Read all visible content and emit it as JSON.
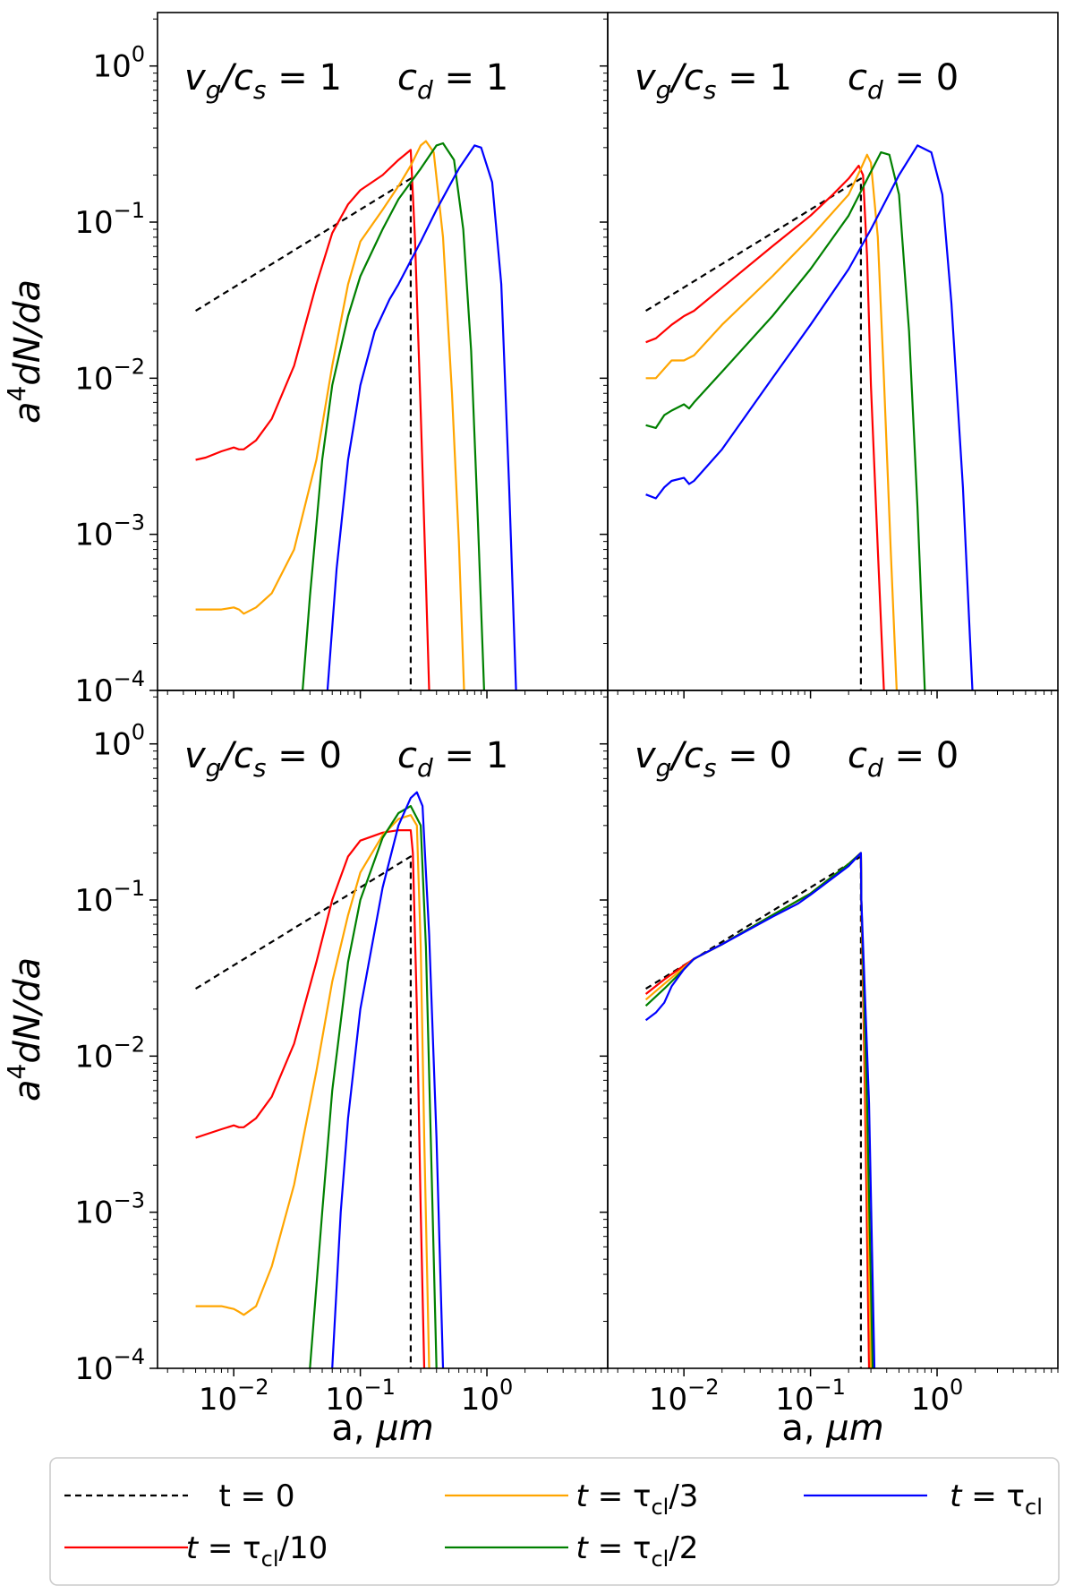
{
  "chart_data": [
    {
      "type": "line",
      "title": "",
      "annotations": [
        "v_g/c_s = 1",
        "c_d = 1"
      ],
      "xscale": "log",
      "yscale": "log",
      "xlim": [
        0.0025,
        9.0
      ],
      "ylim": [
        0.0001,
        2.2
      ],
      "xlabel": "",
      "ylabel": "a^4dN/da",
      "series": [
        {
          "name": "t = 0",
          "color": "#000000",
          "dash": true,
          "x": [
            0.005,
            0.25,
            0.25
          ],
          "y": [
            0.027,
            0.19,
            0.0001
          ]
        },
        {
          "name": "t = τcl/10",
          "color": "#ff0000",
          "x": [
            0.005,
            0.006,
            0.008,
            0.01,
            0.011,
            0.012,
            0.015,
            0.02,
            0.03,
            0.045,
            0.06,
            0.08,
            0.1,
            0.15,
            0.2,
            0.25,
            0.27,
            0.3,
            0.33,
            0.35
          ],
          "y": [
            0.003,
            0.0031,
            0.0034,
            0.0036,
            0.0035,
            0.0035,
            0.004,
            0.0055,
            0.012,
            0.04,
            0.085,
            0.13,
            0.16,
            0.2,
            0.25,
            0.29,
            0.08,
            0.006,
            0.0005,
            0.0001
          ]
        },
        {
          "name": "t = τcl/3",
          "color": "#ffa500",
          "x": [
            0.005,
            0.008,
            0.01,
            0.011,
            0.012,
            0.015,
            0.02,
            0.03,
            0.045,
            0.06,
            0.08,
            0.1,
            0.15,
            0.2,
            0.25,
            0.3,
            0.33,
            0.38,
            0.45,
            0.53,
            0.6,
            0.66
          ],
          "y": [
            0.00033,
            0.00033,
            0.00034,
            0.00033,
            0.00031,
            0.00034,
            0.00042,
            0.0008,
            0.003,
            0.012,
            0.04,
            0.075,
            0.12,
            0.17,
            0.23,
            0.31,
            0.33,
            0.28,
            0.08,
            0.008,
            0.0009,
            0.0001
          ]
        },
        {
          "name": "t = τcl/2",
          "color": "#008000",
          "x": [
            0.035,
            0.04,
            0.05,
            0.06,
            0.08,
            0.1,
            0.15,
            0.2,
            0.3,
            0.4,
            0.45,
            0.55,
            0.65,
            0.75,
            0.85,
            0.95
          ],
          "y": [
            0.0001,
            0.0004,
            0.003,
            0.009,
            0.025,
            0.045,
            0.09,
            0.14,
            0.22,
            0.31,
            0.32,
            0.25,
            0.09,
            0.015,
            0.0012,
            0.0001
          ]
        },
        {
          "name": "t = τcl",
          "color": "#0000ff",
          "x": [
            0.055,
            0.065,
            0.08,
            0.1,
            0.13,
            0.17,
            0.2,
            0.3,
            0.4,
            0.6,
            0.8,
            0.9,
            1.1,
            1.3,
            1.5,
            1.7
          ],
          "y": [
            0.0001,
            0.0006,
            0.003,
            0.009,
            0.02,
            0.032,
            0.04,
            0.075,
            0.12,
            0.22,
            0.31,
            0.3,
            0.18,
            0.04,
            0.002,
            0.0001
          ]
        }
      ]
    },
    {
      "type": "line",
      "title": "",
      "annotations": [
        "v_g/c_s = 1",
        "c_d = 0"
      ],
      "xscale": "log",
      "yscale": "log",
      "xlim": [
        0.0025,
        9.0
      ],
      "ylim": [
        0.0001,
        2.2
      ],
      "xlabel": "",
      "ylabel": "",
      "series": [
        {
          "name": "t = 0",
          "color": "#000000",
          "dash": true,
          "x": [
            0.005,
            0.25,
            0.25
          ],
          "y": [
            0.027,
            0.19,
            0.0001
          ]
        },
        {
          "name": "t = τcl/10",
          "color": "#ff0000",
          "x": [
            0.005,
            0.006,
            0.008,
            0.01,
            0.012,
            0.02,
            0.05,
            0.1,
            0.15,
            0.2,
            0.24,
            0.26,
            0.28,
            0.3,
            0.34,
            0.38
          ],
          "y": [
            0.017,
            0.018,
            0.022,
            0.025,
            0.027,
            0.038,
            0.07,
            0.11,
            0.15,
            0.19,
            0.23,
            0.2,
            0.06,
            0.009,
            0.0008,
            0.0001
          ]
        },
        {
          "name": "t = τcl/3",
          "color": "#ffa500",
          "x": [
            0.005,
            0.006,
            0.008,
            0.01,
            0.012,
            0.02,
            0.05,
            0.1,
            0.2,
            0.25,
            0.28,
            0.3,
            0.34,
            0.38,
            0.43,
            0.48
          ],
          "y": [
            0.01,
            0.01,
            0.013,
            0.013,
            0.014,
            0.022,
            0.045,
            0.08,
            0.15,
            0.22,
            0.27,
            0.24,
            0.08,
            0.01,
            0.0008,
            0.0001
          ]
        },
        {
          "name": "t = τcl/2",
          "color": "#008000",
          "x": [
            0.005,
            0.006,
            0.007,
            0.008,
            0.01,
            0.011,
            0.012,
            0.02,
            0.05,
            0.1,
            0.2,
            0.3,
            0.36,
            0.42,
            0.5,
            0.6,
            0.7,
            0.8
          ],
          "y": [
            0.005,
            0.0048,
            0.0058,
            0.0062,
            0.0068,
            0.0064,
            0.007,
            0.011,
            0.025,
            0.05,
            0.11,
            0.21,
            0.28,
            0.27,
            0.15,
            0.02,
            0.0015,
            0.0001
          ]
        },
        {
          "name": "t = τcl",
          "color": "#0000ff",
          "x": [
            0.005,
            0.006,
            0.007,
            0.008,
            0.01,
            0.011,
            0.012,
            0.02,
            0.05,
            0.1,
            0.2,
            0.3,
            0.5,
            0.7,
            0.9,
            1.1,
            1.3,
            1.6,
            1.9
          ],
          "y": [
            0.0018,
            0.0017,
            0.002,
            0.0022,
            0.0023,
            0.0021,
            0.0022,
            0.0035,
            0.01,
            0.022,
            0.05,
            0.09,
            0.2,
            0.31,
            0.28,
            0.15,
            0.03,
            0.002,
            0.0001
          ]
        }
      ]
    },
    {
      "type": "line",
      "title": "",
      "annotations": [
        "v_g/c_s = 0",
        "c_d = 1"
      ],
      "xscale": "log",
      "yscale": "log",
      "xlim": [
        0.0025,
        9.0
      ],
      "ylim": [
        0.0001,
        2.2
      ],
      "xlabel": "a, μm",
      "ylabel": "a^4dN/da",
      "series": [
        {
          "name": "t = 0",
          "color": "#000000",
          "dash": true,
          "x": [
            0.005,
            0.25,
            0.25
          ],
          "y": [
            0.027,
            0.19,
            0.0001
          ]
        },
        {
          "name": "t = τcl/10",
          "color": "#ff0000",
          "x": [
            0.005,
            0.008,
            0.01,
            0.011,
            0.012,
            0.015,
            0.02,
            0.03,
            0.045,
            0.06,
            0.08,
            0.1,
            0.15,
            0.2,
            0.25,
            0.26,
            0.28,
            0.3,
            0.32
          ],
          "y": [
            0.003,
            0.0034,
            0.0036,
            0.0035,
            0.0035,
            0.004,
            0.0055,
            0.012,
            0.04,
            0.1,
            0.19,
            0.24,
            0.27,
            0.28,
            0.28,
            0.2,
            0.02,
            0.001,
            0.0001
          ]
        },
        {
          "name": "t = τcl/3",
          "color": "#ffa500",
          "x": [
            0.005,
            0.008,
            0.01,
            0.011,
            0.012,
            0.015,
            0.02,
            0.03,
            0.045,
            0.06,
            0.08,
            0.1,
            0.15,
            0.2,
            0.25,
            0.28,
            0.3,
            0.32,
            0.35
          ],
          "y": [
            0.00025,
            0.00025,
            0.00024,
            0.00023,
            0.00022,
            0.00025,
            0.00045,
            0.0015,
            0.008,
            0.03,
            0.08,
            0.15,
            0.26,
            0.33,
            0.35,
            0.3,
            0.05,
            0.003,
            0.0001
          ]
        },
        {
          "name": "t = τcl/2",
          "color": "#008000",
          "x": [
            0.04,
            0.05,
            0.06,
            0.08,
            0.1,
            0.15,
            0.2,
            0.25,
            0.3,
            0.33,
            0.36,
            0.4
          ],
          "y": [
            0.0001,
            0.001,
            0.006,
            0.04,
            0.1,
            0.25,
            0.36,
            0.4,
            0.3,
            0.05,
            0.003,
            0.0001
          ]
        },
        {
          "name": "t = τcl",
          "color": "#0000ff",
          "x": [
            0.06,
            0.07,
            0.08,
            0.1,
            0.15,
            0.2,
            0.25,
            0.28,
            0.31,
            0.35,
            0.4,
            0.45
          ],
          "y": [
            0.0001,
            0.001,
            0.004,
            0.02,
            0.12,
            0.3,
            0.45,
            0.49,
            0.4,
            0.06,
            0.003,
            0.0001
          ]
        }
      ]
    },
    {
      "type": "line",
      "title": "",
      "annotations": [
        "v_g/c_s = 0",
        "c_d = 0"
      ],
      "xscale": "log",
      "yscale": "log",
      "xlim": [
        0.0025,
        9.0
      ],
      "ylim": [
        0.0001,
        2.2
      ],
      "xlabel": "a, μm",
      "ylabel": "",
      "series": [
        {
          "name": "t = 0",
          "color": "#000000",
          "dash": true,
          "x": [
            0.005,
            0.25,
            0.25
          ],
          "y": [
            0.027,
            0.19,
            0.0001
          ]
        },
        {
          "name": "t = τcl/10",
          "color": "#ff0000",
          "x": [
            0.005,
            0.007,
            0.01,
            0.012,
            0.02,
            0.05,
            0.1,
            0.2,
            0.25,
            0.252,
            0.27,
            0.29
          ],
          "y": [
            0.025,
            0.031,
            0.038,
            0.042,
            0.052,
            0.08,
            0.11,
            0.17,
            0.2,
            0.1,
            0.005,
            0.0001
          ]
        },
        {
          "name": "t = τcl/3",
          "color": "#ffa500",
          "x": [
            0.005,
            0.007,
            0.01,
            0.012,
            0.02,
            0.05,
            0.1,
            0.2,
            0.25,
            0.252,
            0.275,
            0.3
          ],
          "y": [
            0.023,
            0.029,
            0.037,
            0.042,
            0.052,
            0.08,
            0.11,
            0.17,
            0.2,
            0.1,
            0.005,
            0.0001
          ]
        },
        {
          "name": "t = τcl/2",
          "color": "#008000",
          "x": [
            0.005,
            0.007,
            0.01,
            0.012,
            0.02,
            0.05,
            0.1,
            0.2,
            0.25,
            0.252,
            0.28,
            0.31
          ],
          "y": [
            0.021,
            0.027,
            0.036,
            0.042,
            0.052,
            0.08,
            0.11,
            0.17,
            0.2,
            0.1,
            0.005,
            0.0001
          ]
        },
        {
          "name": "t = τcl",
          "color": "#0000ff",
          "x": [
            0.005,
            0.006,
            0.007,
            0.008,
            0.01,
            0.012,
            0.02,
            0.05,
            0.08,
            0.1,
            0.2,
            0.25,
            0.252,
            0.29,
            0.32
          ],
          "y": [
            0.017,
            0.019,
            0.022,
            0.028,
            0.036,
            0.042,
            0.052,
            0.078,
            0.095,
            0.108,
            0.165,
            0.2,
            0.1,
            0.005,
            0.0001
          ]
        }
      ]
    }
  ],
  "panel_annotations": [
    {
      "left": {
        "base": "v",
        "sub": "g",
        "mid": "/c",
        "sub2": "s",
        "rest": " = 1"
      },
      "right": {
        "base": "c",
        "sub": "d",
        "rest": " = 1"
      }
    },
    {
      "left": {
        "base": "v",
        "sub": "g",
        "mid": "/c",
        "sub2": "s",
        "rest": " = 1"
      },
      "right": {
        "base": "c",
        "sub": "d",
        "rest": " = 0"
      }
    },
    {
      "left": {
        "base": "v",
        "sub": "g",
        "mid": "/c",
        "sub2": "s",
        "rest": " = 0"
      },
      "right": {
        "base": "c",
        "sub": "d",
        "rest": " = 1"
      }
    },
    {
      "left": {
        "base": "v",
        "sub": "g",
        "mid": "/c",
        "sub2": "s",
        "rest": " = 0"
      },
      "right": {
        "base": "c",
        "sub": "d",
        "rest": " = 0"
      }
    }
  ],
  "y_ticks": [
    {
      "value": 1,
      "base": "10",
      "exp": "0"
    },
    {
      "value": 0.1,
      "base": "10",
      "exp": "−1"
    },
    {
      "value": 0.01,
      "base": "10",
      "exp": "−2"
    },
    {
      "value": 0.001,
      "base": "10",
      "exp": "−3"
    },
    {
      "value": 0.0001,
      "base": "10",
      "exp": "−4"
    }
  ],
  "x_ticks": [
    {
      "value": 0.01,
      "base": "10",
      "exp": "−2"
    },
    {
      "value": 0.1,
      "base": "10",
      "exp": "−1"
    },
    {
      "value": 1,
      "base": "10",
      "exp": "0"
    }
  ],
  "ylabel": {
    "base": "a",
    "exp": "4",
    "rest": "dN/da"
  },
  "xlabel": {
    "text": "a, ",
    "italic": "μm"
  },
  "legend": [
    {
      "label_plain": "t = 0",
      "color": "#000000",
      "dash": true
    },
    {
      "label_t": "t",
      "label_rest": " = τ",
      "label_sub": "cl",
      "label_tail": "/10",
      "color": "#ff0000"
    },
    {
      "label_t": "t",
      "label_rest": " = τ",
      "label_sub": "cl",
      "label_tail": "/3",
      "color": "#ffa500"
    },
    {
      "label_t": "t",
      "label_rest": " = τ",
      "label_sub": "cl",
      "label_tail": "/2",
      "color": "#008000"
    },
    {
      "label_t": "t",
      "label_rest": " = τ",
      "label_sub": "cl",
      "label_tail": "",
      "color": "#0000ff"
    }
  ]
}
